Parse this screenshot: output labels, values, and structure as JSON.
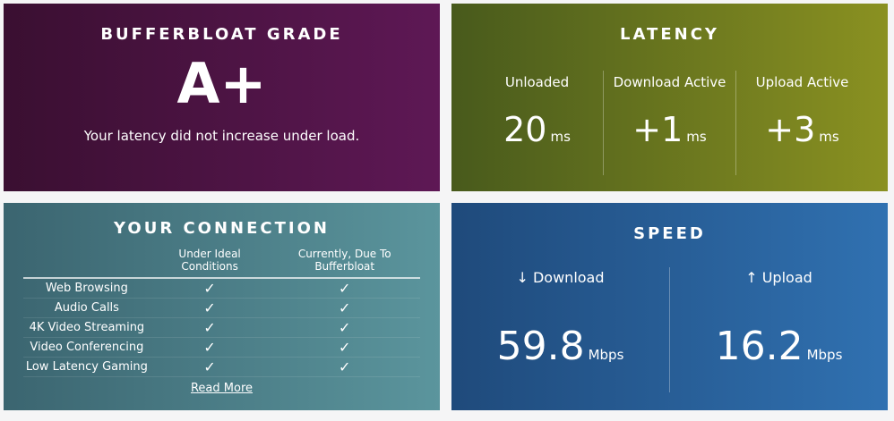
{
  "grade": {
    "title": "BUFFERBLOAT GRADE",
    "grade": "A+",
    "message": "Your latency did not increase under load."
  },
  "latency": {
    "title": "LATENCY",
    "items": [
      {
        "label": "Unloaded",
        "value": "20",
        "unit": "ms"
      },
      {
        "label": "Download Active",
        "value": "+1",
        "unit": "ms"
      },
      {
        "label": "Upload Active",
        "value": "+3",
        "unit": "ms"
      }
    ]
  },
  "connection": {
    "title": "YOUR CONNECTION",
    "headers": [
      "Under Ideal Conditions",
      "Currently, Due To Bufferbloat"
    ],
    "check": "✓",
    "rows": [
      "Web Browsing",
      "Audio Calls",
      "4K Video Streaming",
      "Video Conferencing",
      "Low Latency Gaming"
    ],
    "read_more": "Read More"
  },
  "speed": {
    "title": "SPEED",
    "items": [
      {
        "label": "↓ Download",
        "value": "59.8",
        "unit": "Mbps"
      },
      {
        "label": "↑ Upload",
        "value": "16.2",
        "unit": "Mbps"
      }
    ]
  }
}
